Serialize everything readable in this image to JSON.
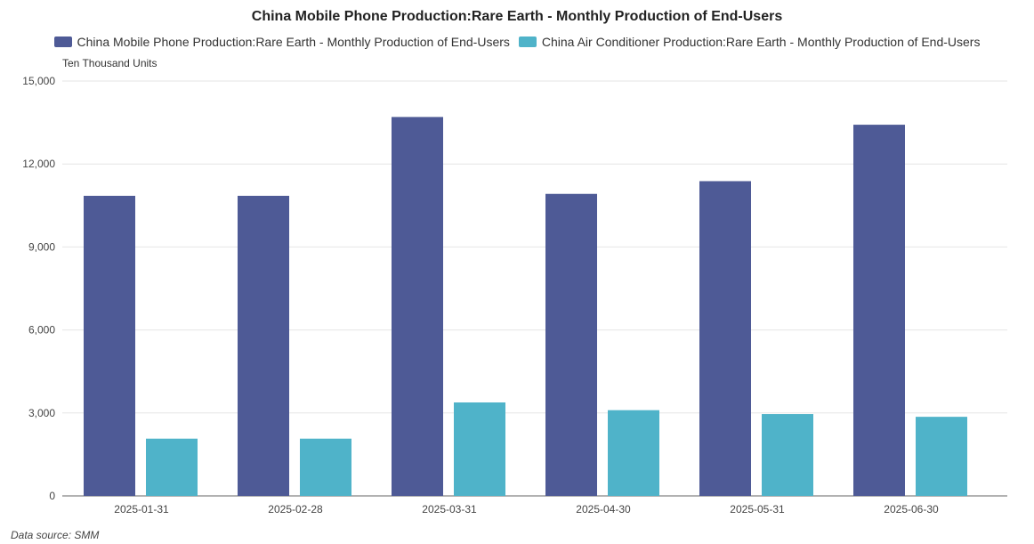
{
  "chart_data": {
    "type": "bar",
    "title": "China Mobile Phone Production:Rare Earth - Monthly Production of End-Users",
    "ylabel": "Ten Thousand Units",
    "categories": [
      "2025-01-31",
      "2025-02-28",
      "2025-03-31",
      "2025-04-30",
      "2025-05-31",
      "2025-06-30"
    ],
    "series": [
      {
        "name": "China Mobile Phone Production:Rare Earth - Monthly Production of End-Users",
        "color": "#4e5a96",
        "values": [
          10850,
          10850,
          13700,
          10920,
          11380,
          13420
        ]
      },
      {
        "name": "China Air Conditioner Production:Rare Earth - Monthly Production of End-Users",
        "color": "#4fb3c9",
        "values": [
          2070,
          2070,
          3380,
          3100,
          2960,
          2860
        ]
      }
    ],
    "ylim": [
      0,
      15000
    ],
    "yticks": [
      "0",
      "3,000",
      "6,000",
      "9,000",
      "12,000",
      "15,000"
    ],
    "grid": true,
    "legend_position": "top"
  },
  "footer": {
    "source": "Data source:  SMM"
  }
}
